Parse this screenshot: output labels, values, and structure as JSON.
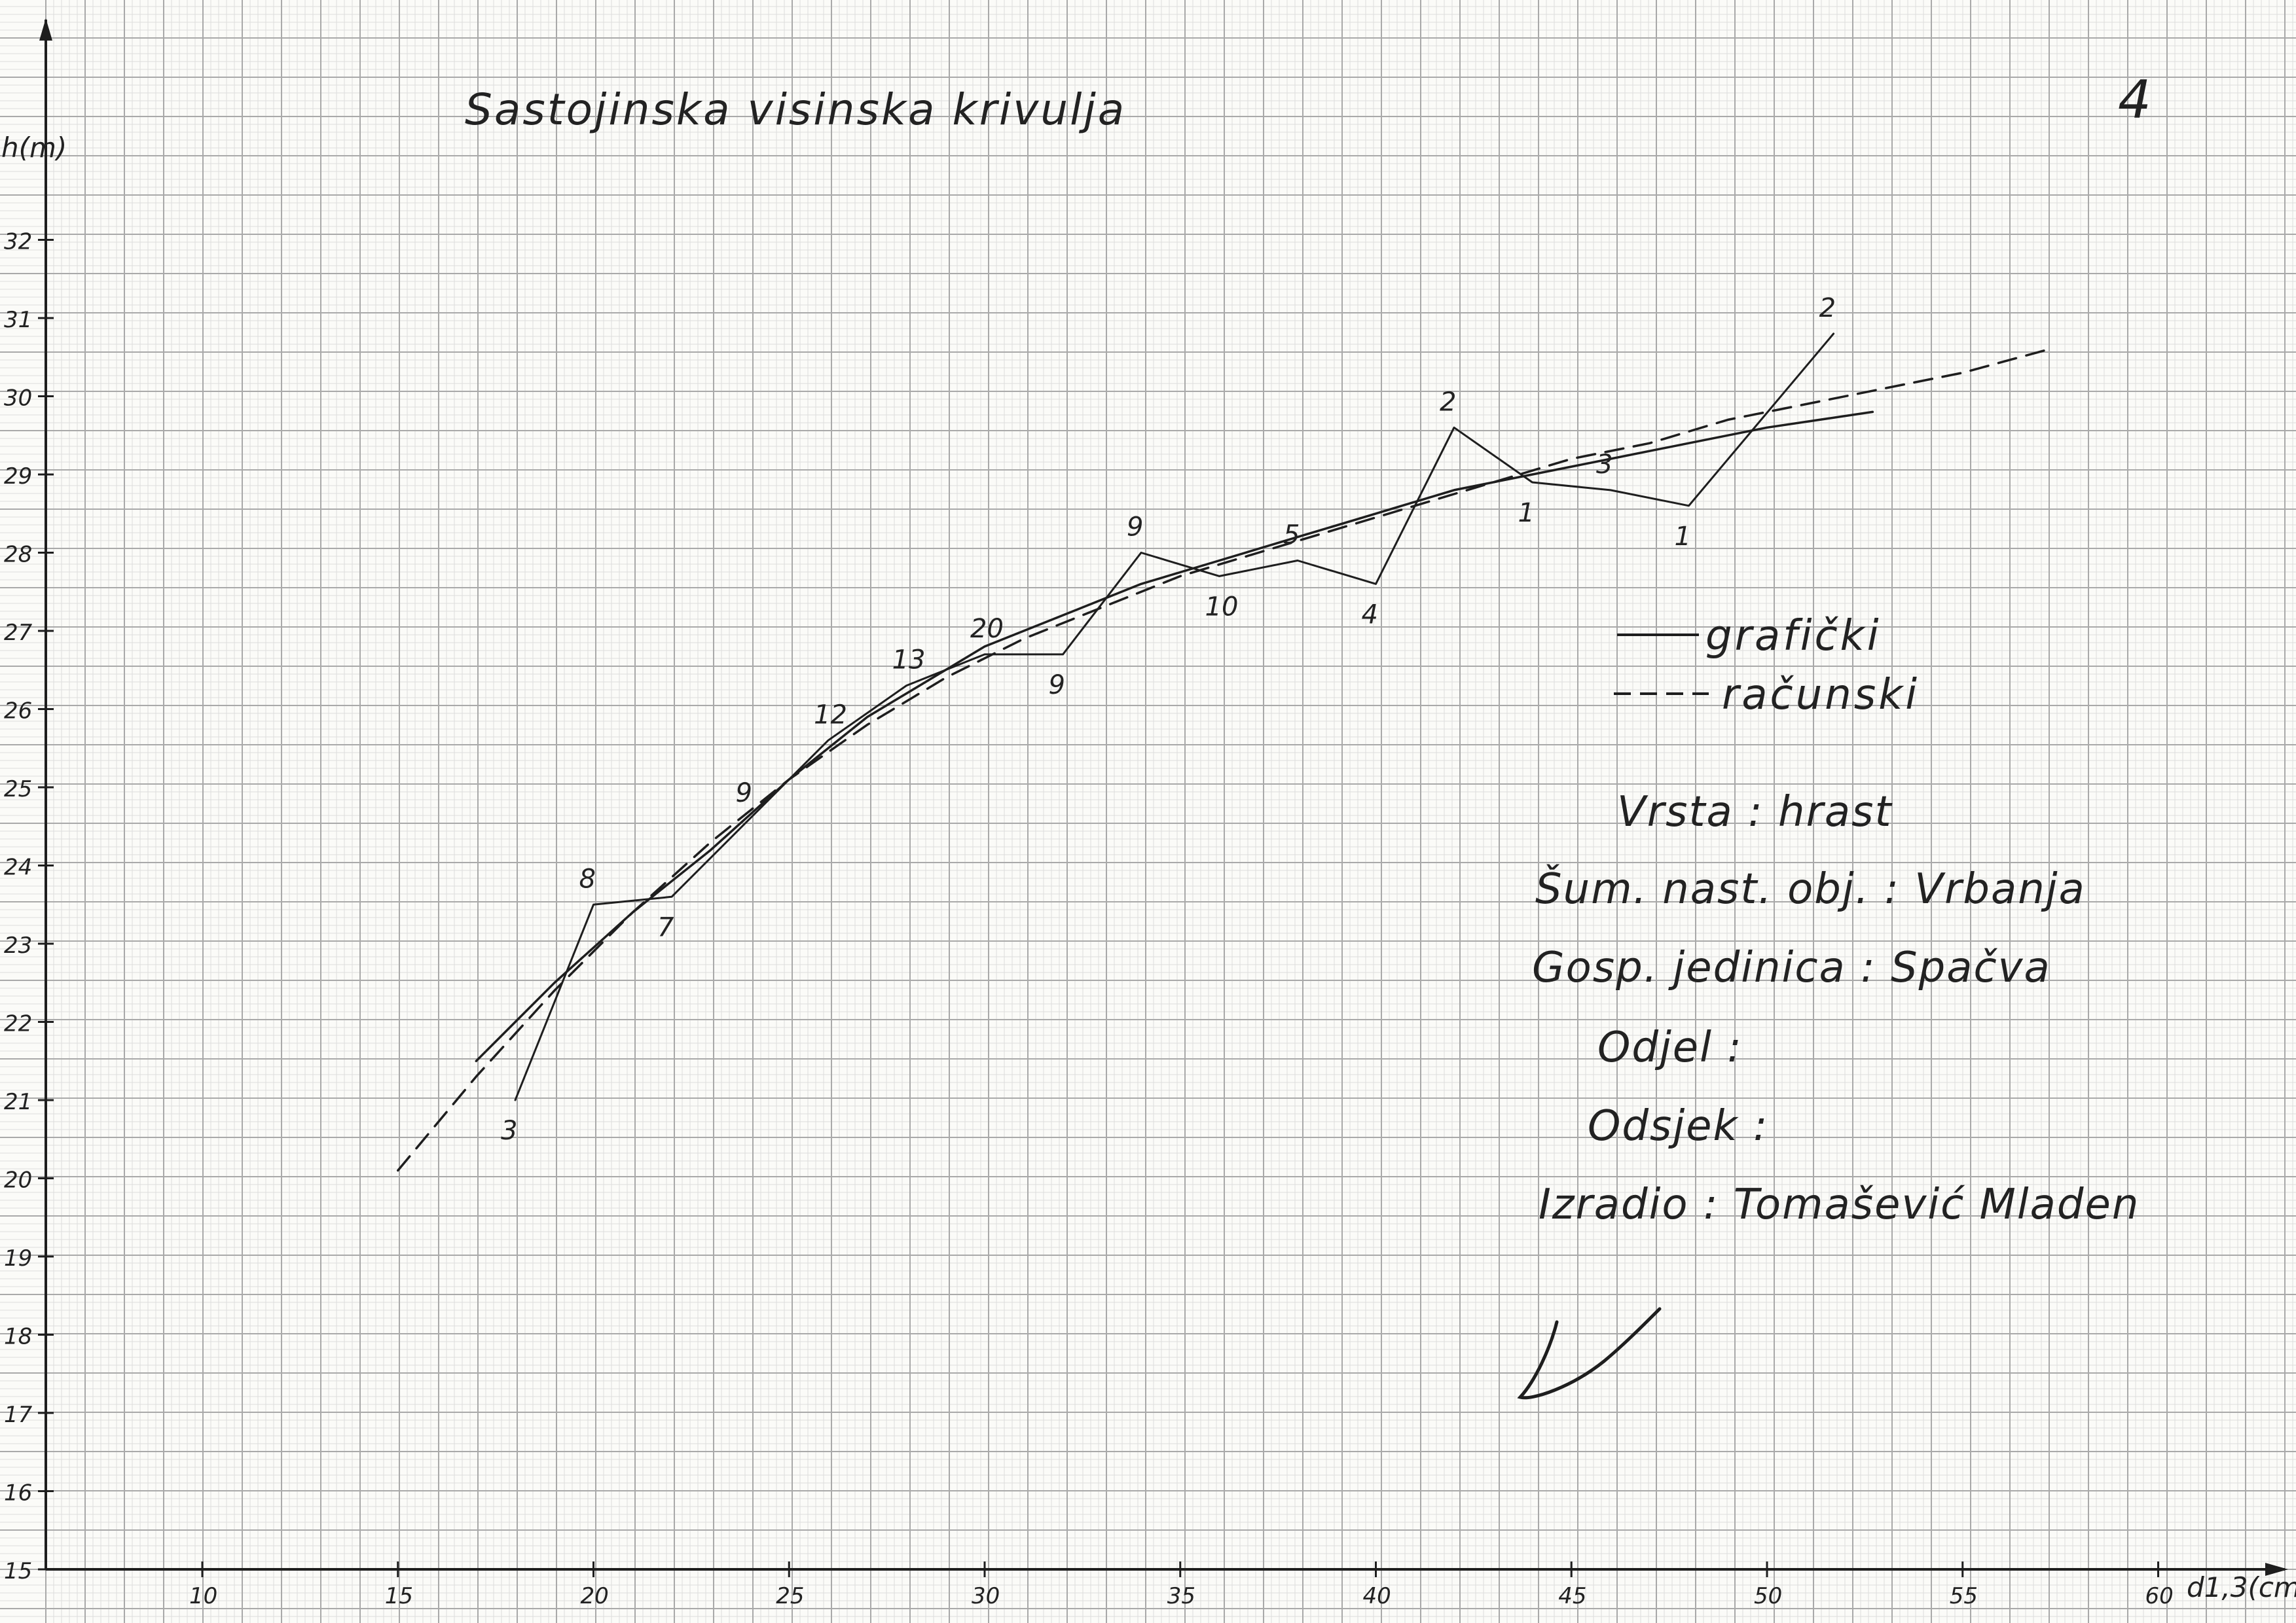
{
  "chart_data": {
    "type": "line",
    "title": "Sastojinska visinska krivulja",
    "page_number": "4",
    "xlabel": "d1,3(cm)",
    "ylabel": "h(m)",
    "xlim": [
      6,
      63
    ],
    "ylim": [
      15,
      33.8
    ],
    "x_ticks": [
      10,
      15,
      20,
      25,
      30,
      35,
      40,
      45,
      50,
      55,
      60
    ],
    "y_ticks": [
      15,
      16,
      17,
      18,
      19,
      20,
      21,
      22,
      23,
      24,
      25,
      26,
      27,
      28,
      29,
      30,
      31,
      32
    ],
    "grid": true,
    "legend_position": "right",
    "series": [
      {
        "name": "",
        "style": "measured",
        "points": [
          {
            "x": 18,
            "y": 21.0,
            "count": "3"
          },
          {
            "x": 20,
            "y": 23.5,
            "count": "8"
          },
          {
            "x": 22,
            "y": 23.6,
            "count": "7"
          },
          {
            "x": 24,
            "y": 24.6,
            "count": "9"
          },
          {
            "x": 26,
            "y": 25.6,
            "count": "12"
          },
          {
            "x": 28,
            "y": 26.3,
            "count": "13"
          },
          {
            "x": 30,
            "y": 26.7,
            "count": "20"
          },
          {
            "x": 32,
            "y": 26.7,
            "count": "9"
          },
          {
            "x": 34,
            "y": 28.0,
            "count": "9"
          },
          {
            "x": 36,
            "y": 27.7,
            "count": "10"
          },
          {
            "x": 38,
            "y": 27.9,
            "count": "5"
          },
          {
            "x": 40,
            "y": 27.6,
            "count": "4"
          },
          {
            "x": 42,
            "y": 29.6,
            "count": "2"
          },
          {
            "x": 44,
            "y": 28.9,
            "count": "1"
          },
          {
            "x": 46,
            "y": 28.8,
            "count": "3"
          },
          {
            "x": 48,
            "y": 28.6,
            "count": "1"
          },
          {
            "x": 51.7,
            "y": 30.8,
            "count": "2"
          }
        ]
      },
      {
        "name": "grafički",
        "style": "solid",
        "x": [
          17,
          19,
          21,
          23,
          25,
          27,
          29,
          30,
          32,
          34,
          36,
          38,
          40,
          42,
          44,
          46,
          48,
          50,
          52.7
        ],
        "values": [
          21.5,
          22.5,
          23.4,
          24.2,
          25.1,
          25.9,
          26.5,
          26.8,
          27.2,
          27.6,
          27.9,
          28.2,
          28.5,
          28.8,
          29.0,
          29.2,
          29.4,
          29.6,
          29.8
        ]
      },
      {
        "name": "računski",
        "style": "dashed",
        "x": [
          15,
          17,
          19,
          21,
          23,
          25,
          27,
          29,
          31,
          33,
          35,
          37,
          39,
          41,
          43,
          45,
          47,
          49,
          51,
          53,
          55,
          57.2
        ],
        "values": [
          20.1,
          21.3,
          22.4,
          23.4,
          24.3,
          25.1,
          25.8,
          26.4,
          26.9,
          27.3,
          27.7,
          28.0,
          28.3,
          28.6,
          28.9,
          29.2,
          29.4,
          29.7,
          29.9,
          30.1,
          30.3,
          30.6
        ]
      }
    ]
  },
  "info": {
    "vrsta": "Vrsta : hrast",
    "sumski_objekt": "Šum. nast. obj. : Vrbanja",
    "gosp_jedinica": "Gosp. jedinica : Spačva",
    "odjel": "Odjel :",
    "odsjek": "Odsjek :",
    "izradio": "Izradio : Tomašević Mladen"
  },
  "colors": {
    "grid_major": "#a9a9a9",
    "grid_minor": "#dcdcdc",
    "ink": "#1e1e1e",
    "paper": "#fbfbf8"
  }
}
